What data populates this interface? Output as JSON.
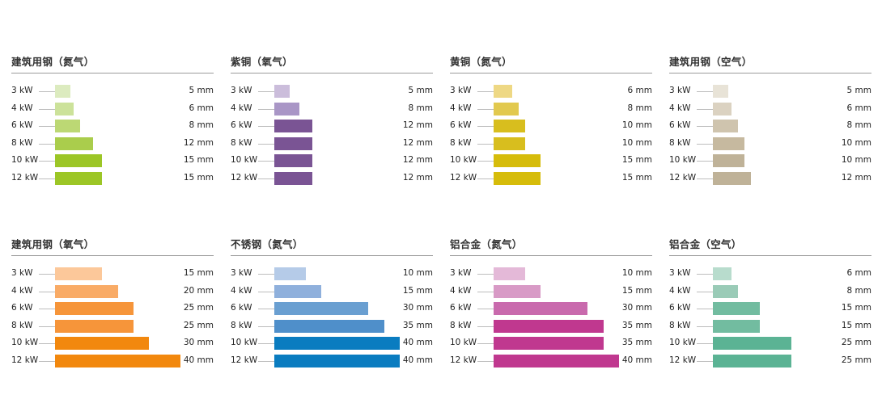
{
  "chart_data": [
    {
      "type": "bar",
      "title": "建筑用钢（氮气）",
      "categories": [
        "3 kW",
        "4 kW",
        "6 kW",
        "8 kW",
        "10 kW",
        "12 kW"
      ],
      "values": [
        5,
        6,
        8,
        12,
        15,
        15
      ],
      "value_labels": [
        "5 mm",
        "6 mm",
        "8 mm",
        "12 mm",
        "15 mm",
        "15 mm"
      ],
      "xlim": [
        0,
        40
      ],
      "colors": [
        "#dcebbf",
        "#cce29a",
        "#bcd874",
        "#aacd4c",
        "#9cc626",
        "#9cc626"
      ]
    },
    {
      "type": "bar",
      "title": "紫铜（氧气）",
      "categories": [
        "3 kW",
        "4 kW",
        "6 kW",
        "8 kW",
        "10 kW",
        "12 kW"
      ],
      "values": [
        5,
        8,
        12,
        12,
        12,
        12
      ],
      "value_labels": [
        "5 mm",
        "8 mm",
        "12 mm",
        "12 mm",
        "12 mm",
        "12 mm"
      ],
      "xlim": [
        0,
        40
      ],
      "colors": [
        "#cbbddb",
        "#a996c6",
        "#7a5494",
        "#7a5494",
        "#7a5494",
        "#7a5494"
      ]
    },
    {
      "type": "bar",
      "title": "黄铜（氮气）",
      "categories": [
        "3 kW",
        "4 kW",
        "6 kW",
        "8 kW",
        "10 kW",
        "12 kW"
      ],
      "values": [
        6,
        8,
        10,
        10,
        15,
        15
      ],
      "value_labels": [
        "6 mm",
        "8 mm",
        "10 mm",
        "10 mm",
        "15 mm",
        "15 mm"
      ],
      "xlim": [
        0,
        40
      ],
      "colors": [
        "#eed884",
        "#e2c94e",
        "#d8be1e",
        "#d8be1e",
        "#d6bc0a",
        "#d6bc0a"
      ]
    },
    {
      "type": "bar",
      "title": "建筑用钢（空气）",
      "categories": [
        "3 kW",
        "4 kW",
        "6 kW",
        "8 kW",
        "10 kW",
        "12 kW"
      ],
      "values": [
        5,
        6,
        8,
        10,
        10,
        12
      ],
      "value_labels": [
        "5 mm",
        "6 mm",
        "8 mm",
        "10 mm",
        "10 mm",
        "12 mm"
      ],
      "xlim": [
        0,
        40
      ],
      "colors": [
        "#e8e3d7",
        "#dbd2c1",
        "#cfc4ae",
        "#c6b99f",
        "#bfb298",
        "#bfb298"
      ]
    },
    {
      "type": "bar",
      "title": "建筑用钢（氧气）",
      "categories": [
        "3 kW",
        "4 kW",
        "6 kW",
        "8 kW",
        "10 kW",
        "12 kW"
      ],
      "values": [
        15,
        20,
        25,
        25,
        30,
        40
      ],
      "value_labels": [
        "15 mm",
        "20 mm",
        "25 mm",
        "25 mm",
        "30 mm",
        "40 mm"
      ],
      "xlim": [
        0,
        40
      ],
      "colors": [
        "#fcc89a",
        "#f9ab66",
        "#f6953a",
        "#f6953a",
        "#f2880e",
        "#f2880e"
      ]
    },
    {
      "type": "bar",
      "title": "不锈钢（氮气）",
      "categories": [
        "3 kW",
        "4 kW",
        "6 kW",
        "8 kW",
        "10 kW",
        "12 kW"
      ],
      "values": [
        10,
        15,
        30,
        35,
        40,
        40
      ],
      "value_labels": [
        "10 mm",
        "15 mm",
        "30 mm",
        "35 mm",
        "40 mm",
        "40 mm"
      ],
      "xlim": [
        0,
        40
      ],
      "colors": [
        "#b5cbe8",
        "#8fb0dc",
        "#6a9fd1",
        "#4f8fca",
        "#0a7cc0",
        "#0a7cc0"
      ]
    },
    {
      "type": "bar",
      "title": "铝合金（氮气）",
      "categories": [
        "3 kW",
        "4 kW",
        "6 kW",
        "8 kW",
        "10 kW",
        "12 kW"
      ],
      "values": [
        10,
        15,
        30,
        35,
        35,
        40
      ],
      "value_labels": [
        "10 mm",
        "15 mm",
        "30 mm",
        "35 mm",
        "35 mm",
        "40 mm"
      ],
      "xlim": [
        0,
        40
      ],
      "colors": [
        "#e4b9d8",
        "#d89ac6",
        "#c96aad",
        "#c0388f",
        "#c0388f",
        "#c0388f"
      ]
    },
    {
      "type": "bar",
      "title": "铝合金（空气）",
      "categories": [
        "3 kW",
        "4 kW",
        "6 kW",
        "8 kW",
        "10 kW",
        "12 kW"
      ],
      "values": [
        6,
        8,
        15,
        15,
        25,
        25
      ],
      "value_labels": [
        "6 mm",
        "8 mm",
        "15 mm",
        "15 mm",
        "25 mm",
        "25 mm"
      ],
      "xlim": [
        0,
        40
      ],
      "colors": [
        "#b8dccd",
        "#9acbb7",
        "#72bca0",
        "#72bca0",
        "#5bb394",
        "#5bb394"
      ]
    }
  ]
}
